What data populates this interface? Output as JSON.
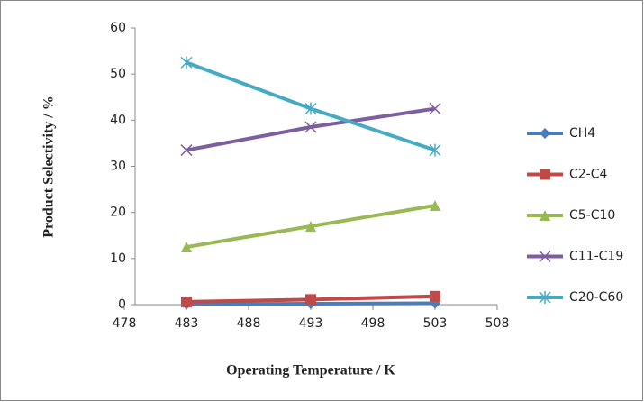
{
  "chart_data": {
    "type": "line",
    "x_label": "Operating Temperature / K",
    "y_label": "Product Selectivity / %",
    "x": [
      483,
      493,
      503
    ],
    "xlim": [
      478,
      508
    ],
    "xticks": [
      478,
      483,
      488,
      493,
      498,
      503,
      508
    ],
    "ylim": [
      0,
      60
    ],
    "yticks": [
      0,
      10,
      20,
      30,
      40,
      50,
      60
    ],
    "legend": "right",
    "series": [
      {
        "name": "CH4",
        "color": "#4a7ebb",
        "marker": "diamond",
        "values": [
          0.1,
          0.2,
          0.3
        ]
      },
      {
        "name": "C2-C4",
        "color": "#be4b48",
        "marker": "square",
        "values": [
          0.6,
          1.1,
          1.8
        ]
      },
      {
        "name": "C5-C10",
        "color": "#98b954",
        "marker": "triangle",
        "values": [
          12.5,
          17,
          21.5
        ]
      },
      {
        "name": "C11-C19",
        "color": "#7d5fa0",
        "marker": "x",
        "values": [
          33.5,
          38.5,
          42.5
        ]
      },
      {
        "name": "C20-C60",
        "color": "#46aac5",
        "marker": "star",
        "values": [
          52.5,
          42.5,
          33.5
        ]
      }
    ]
  }
}
